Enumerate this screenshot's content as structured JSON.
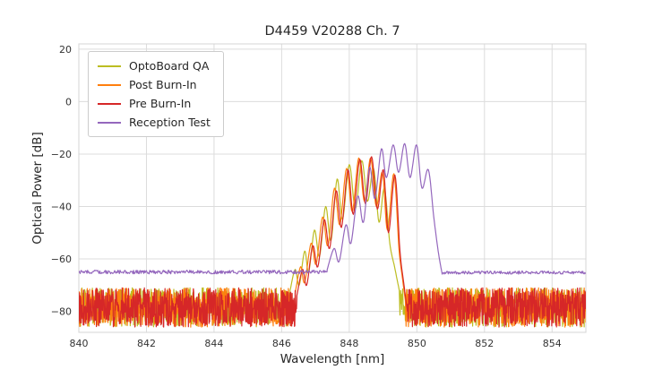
{
  "figure": {
    "title": "D4459 V20288 Ch. 7",
    "xlabel": "Wavelength [nm]",
    "ylabel": "Optical Power [dB]"
  },
  "chart_data": {
    "type": "line",
    "title": "D4459 V20288 Ch. 7",
    "xlabel": "Wavelength [nm]",
    "ylabel": "Optical Power [dB]",
    "xlim": [
      840,
      855
    ],
    "ylim": [
      -88,
      22
    ],
    "xticks": {
      "values": [
        840,
        842,
        844,
        846,
        848,
        850,
        852,
        854
      ],
      "labels": [
        "840",
        "842",
        "844",
        "846",
        "848",
        "850",
        "852",
        "854"
      ]
    },
    "yticks": {
      "values": [
        20,
        0,
        -20,
        -40,
        -60,
        -80
      ],
      "labels": [
        "20",
        "0",
        "−20",
        "−40",
        "−60",
        "−80"
      ]
    },
    "grid": true,
    "grid_color": "#dcdcdc",
    "frame_color": "#d5d5d5",
    "legend_position": "upper-left",
    "noise_seed": 42,
    "description": "Optical spectra of laser channel 7 measured at four QA stages. OptoBoard QA / Post Burn-In / Pre Burn-In share a noisy ~-78 dB floor with a rippled spectral lobe peaking near -21 to -24 dB around 848-849.5 nm. Reception Test has a smooth -65 dB floor with its lobe shifted to ~849-850.5 nm peaking near -16 dB.",
    "series": [
      {
        "name": "OptoBoard QA",
        "color": "#bcbd22",
        "segments": [
          {
            "type": "noise",
            "x0": 840.0,
            "x1": 846.25,
            "base": -78.5,
            "amp": 7.5,
            "step": 0.01
          },
          {
            "type": "curve",
            "points": [
              [
                846.25,
                -72
              ],
              [
                846.4,
                -64
              ],
              [
                846.52,
                -70
              ],
              [
                846.68,
                -57
              ],
              [
                846.8,
                -65
              ],
              [
                846.97,
                -49
              ],
              [
                847.12,
                -59
              ],
              [
                847.3,
                -40
              ],
              [
                847.46,
                -53
              ],
              [
                847.64,
                -29.5
              ],
              [
                847.8,
                -45
              ],
              [
                848.0,
                -24
              ],
              [
                848.18,
                -41
              ],
              [
                848.37,
                -22.5
              ],
              [
                848.54,
                -38
              ],
              [
                848.72,
                -25.5
              ],
              [
                848.88,
                -46
              ],
              [
                849.04,
                -33
              ],
              [
                849.2,
                -54
              ],
              [
                849.34,
                -63
              ],
              [
                849.48,
                -72
              ]
            ]
          },
          {
            "type": "noise",
            "x0": 849.5,
            "x1": 855.0,
            "base": -78.5,
            "amp": 7.5,
            "step": 0.01
          }
        ]
      },
      {
        "name": "Post Burn-In",
        "color": "#ff7f0e",
        "segments": [
          {
            "type": "noise",
            "x0": 840.0,
            "x1": 846.4,
            "base": -78.5,
            "amp": 7.5,
            "step": 0.01
          },
          {
            "type": "curve",
            "points": [
              [
                846.4,
                -73
              ],
              [
                846.56,
                -63
              ],
              [
                846.68,
                -69
              ],
              [
                846.87,
                -54
              ],
              [
                847.02,
                -62
              ],
              [
                847.21,
                -44
              ],
              [
                847.37,
                -55
              ],
              [
                847.56,
                -33
              ],
              [
                847.72,
                -47
              ],
              [
                847.92,
                -25.5
              ],
              [
                848.09,
                -42
              ],
              [
                848.28,
                -21.5
              ],
              [
                848.45,
                -38
              ],
              [
                848.63,
                -21.5
              ],
              [
                848.8,
                -40
              ],
              [
                848.98,
                -27
              ],
              [
                849.13,
                -49
              ],
              [
                849.32,
                -27.5
              ],
              [
                849.47,
                -56
              ],
              [
                849.58,
                -68
              ],
              [
                849.66,
                -76
              ]
            ]
          },
          {
            "type": "noise",
            "x0": 849.68,
            "x1": 855.0,
            "base": -78.5,
            "amp": 7.5,
            "step": 0.01
          }
        ]
      },
      {
        "name": "Pre Burn-In",
        "color": "#d62728",
        "segments": [
          {
            "type": "noise",
            "x0": 840.0,
            "x1": 846.45,
            "base": -78.5,
            "amp": 7.5,
            "step": 0.01
          },
          {
            "type": "curve",
            "points": [
              [
                846.45,
                -74
              ],
              [
                846.62,
                -64
              ],
              [
                846.74,
                -70
              ],
              [
                846.92,
                -55
              ],
              [
                847.07,
                -63
              ],
              [
                847.26,
                -45
              ],
              [
                847.42,
                -56
              ],
              [
                847.61,
                -34
              ],
              [
                847.77,
                -48
              ],
              [
                847.96,
                -26
              ],
              [
                848.12,
                -43
              ],
              [
                848.31,
                -22
              ],
              [
                848.48,
                -39
              ],
              [
                848.66,
                -21
              ],
              [
                848.83,
                -41
              ],
              [
                849.01,
                -26
              ],
              [
                849.16,
                -50
              ],
              [
                849.35,
                -28
              ],
              [
                849.5,
                -57
              ],
              [
                849.62,
                -70
              ],
              [
                849.7,
                -78
              ]
            ]
          },
          {
            "type": "noise",
            "x0": 849.72,
            "x1": 855.0,
            "base": -78.5,
            "amp": 7.5,
            "step": 0.01
          }
        ]
      },
      {
        "name": "Reception Test",
        "color": "#9467bd",
        "segments": [
          {
            "type": "noise",
            "x0": 840.0,
            "x1": 847.35,
            "base": -65.0,
            "amp": 0.7,
            "step": 0.02
          },
          {
            "type": "curve",
            "points": [
              [
                847.35,
                -64
              ],
              [
                847.55,
                -56
              ],
              [
                847.7,
                -61
              ],
              [
                847.9,
                -47
              ],
              [
                848.05,
                -54
              ],
              [
                848.25,
                -36
              ],
              [
                848.42,
                -46
              ],
              [
                848.6,
                -25
              ],
              [
                848.76,
                -37
              ],
              [
                848.95,
                -18
              ],
              [
                849.1,
                -29
              ],
              [
                849.3,
                -16.5
              ],
              [
                849.46,
                -27
              ],
              [
                849.64,
                -16
              ],
              [
                849.8,
                -29
              ],
              [
                849.99,
                -16.5
              ],
              [
                850.15,
                -33
              ],
              [
                850.34,
                -26
              ],
              [
                850.5,
                -44
              ],
              [
                850.63,
                -57
              ],
              [
                850.73,
                -64.5
              ]
            ]
          },
          {
            "type": "noise",
            "x0": 850.75,
            "x1": 855.0,
            "base": -65.2,
            "amp": 0.6,
            "step": 0.02
          }
        ]
      }
    ]
  }
}
